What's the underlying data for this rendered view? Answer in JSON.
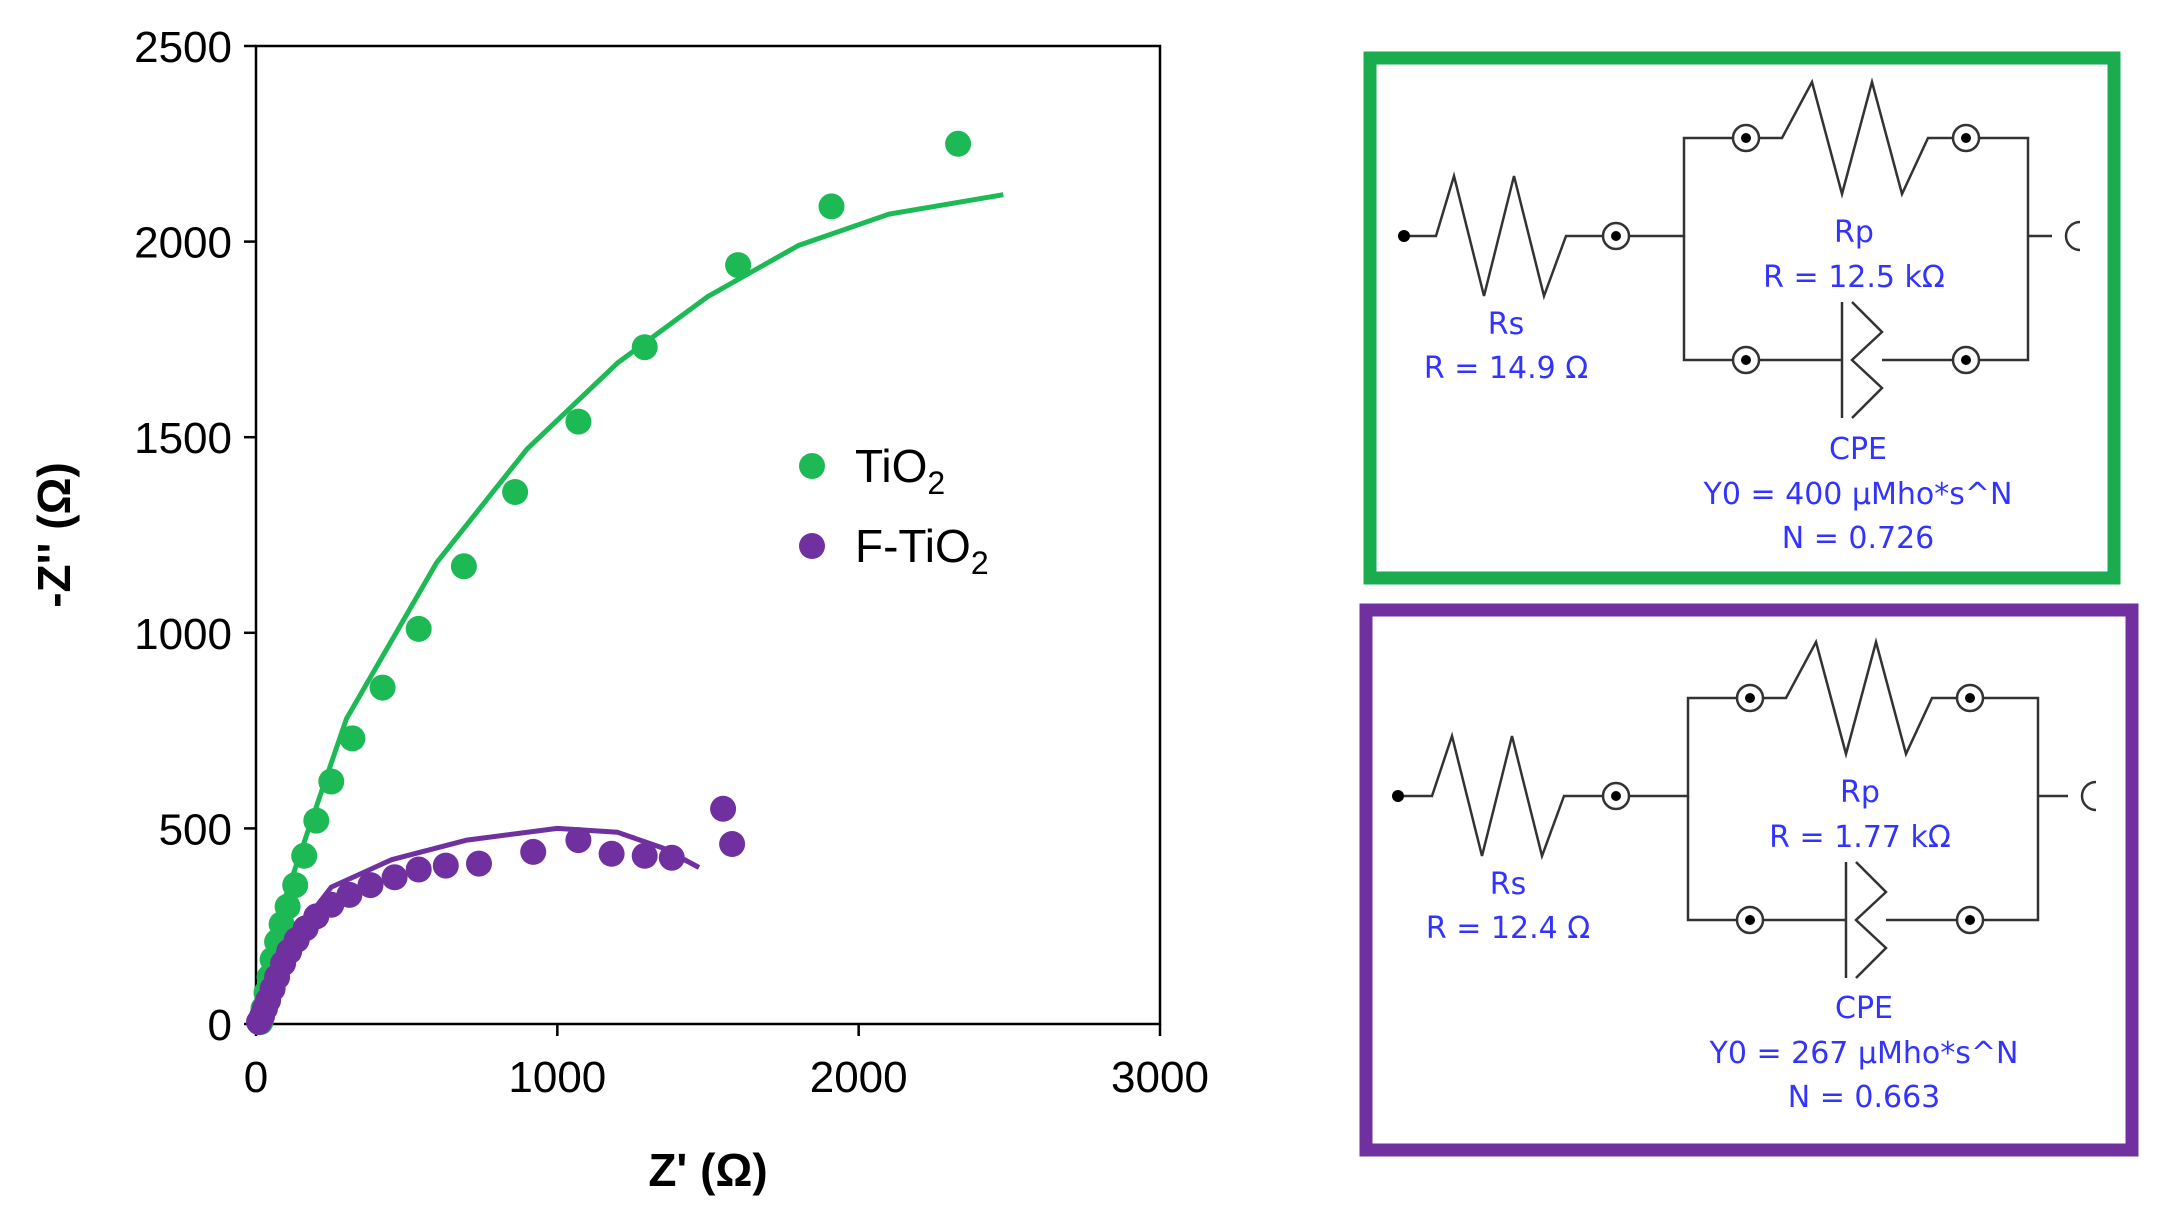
{
  "chart_data": {
    "type": "scatter",
    "xlabel": "Z' (Ω)",
    "ylabel": "-Z'' (Ω)",
    "xlim": [
      0,
      3000
    ],
    "ylim": [
      0,
      2500
    ],
    "xticks": [
      "0",
      "1000",
      "2000",
      "3000"
    ],
    "yticks": [
      "0",
      "500",
      "1000",
      "1500",
      "2000",
      "2500"
    ],
    "legend_position": "center-right",
    "series": [
      {
        "name": "TiO2",
        "name_main": "TiO",
        "name_sub": "2",
        "color": "#1db954",
        "points": [
          [
            15,
            5
          ],
          [
            25,
            40
          ],
          [
            35,
            80
          ],
          [
            45,
            120
          ],
          [
            55,
            165
          ],
          [
            70,
            210
          ],
          [
            85,
            255
          ],
          [
            105,
            300
          ],
          [
            130,
            355
          ],
          [
            160,
            430
          ],
          [
            200,
            520
          ],
          [
            250,
            620
          ],
          [
            320,
            730
          ],
          [
            420,
            860
          ],
          [
            540,
            1010
          ],
          [
            690,
            1170
          ],
          [
            860,
            1360
          ],
          [
            1070,
            1540
          ],
          [
            1290,
            1730
          ],
          [
            1600,
            1940
          ],
          [
            1910,
            2090
          ],
          [
            2330,
            2250
          ]
        ],
        "fit": [
          [
            5,
            0
          ],
          [
            100,
            330
          ],
          [
            300,
            780
          ],
          [
            600,
            1180
          ],
          [
            900,
            1470
          ],
          [
            1200,
            1690
          ],
          [
            1500,
            1860
          ],
          [
            1800,
            1990
          ],
          [
            2100,
            2070
          ],
          [
            2480,
            2120
          ]
        ]
      },
      {
        "name": "F-TiO2",
        "name_main": "F-TiO",
        "name_sub": "2",
        "color": "#7030a0",
        "points": [
          [
            10,
            5
          ],
          [
            20,
            20
          ],
          [
            30,
            40
          ],
          [
            40,
            60
          ],
          [
            55,
            90
          ],
          [
            70,
            120
          ],
          [
            90,
            155
          ],
          [
            110,
            185
          ],
          [
            135,
            215
          ],
          [
            165,
            245
          ],
          [
            200,
            275
          ],
          [
            250,
            305
          ],
          [
            310,
            330
          ],
          [
            380,
            355
          ],
          [
            460,
            375
          ],
          [
            540,
            395
          ],
          [
            630,
            405
          ],
          [
            740,
            410
          ],
          [
            920,
            440
          ],
          [
            1070,
            470
          ],
          [
            1180,
            435
          ],
          [
            1290,
            430
          ],
          [
            1380,
            425
          ],
          [
            1550,
            550
          ],
          [
            1580,
            460
          ]
        ],
        "fit": [
          [
            5,
            0
          ],
          [
            100,
            200
          ],
          [
            250,
            350
          ],
          [
            450,
            420
          ],
          [
            700,
            470
          ],
          [
            1000,
            500
          ],
          [
            1200,
            490
          ],
          [
            1350,
            450
          ],
          [
            1470,
            400
          ]
        ]
      }
    ]
  },
  "circuits": [
    {
      "frame_color": "#1aac4f",
      "rs_name": "Rs",
      "rs_value": "R = 14.9 Ω",
      "rp_name": "Rp",
      "rp_value": "R = 12.5 kΩ",
      "cpe_name": "CPE",
      "cpe_y0": "Y0 = 400 µMho*s^N",
      "cpe_n": "N = 0.726"
    },
    {
      "frame_color": "#7030a0",
      "rs_name": "Rs",
      "rs_value": "R = 12.4 Ω",
      "rp_name": "Rp",
      "rp_value": "R = 1.77 kΩ",
      "cpe_name": "CPE",
      "cpe_y0": "Y0 = 267 µMho*s^N",
      "cpe_n": "N = 0.663"
    }
  ]
}
